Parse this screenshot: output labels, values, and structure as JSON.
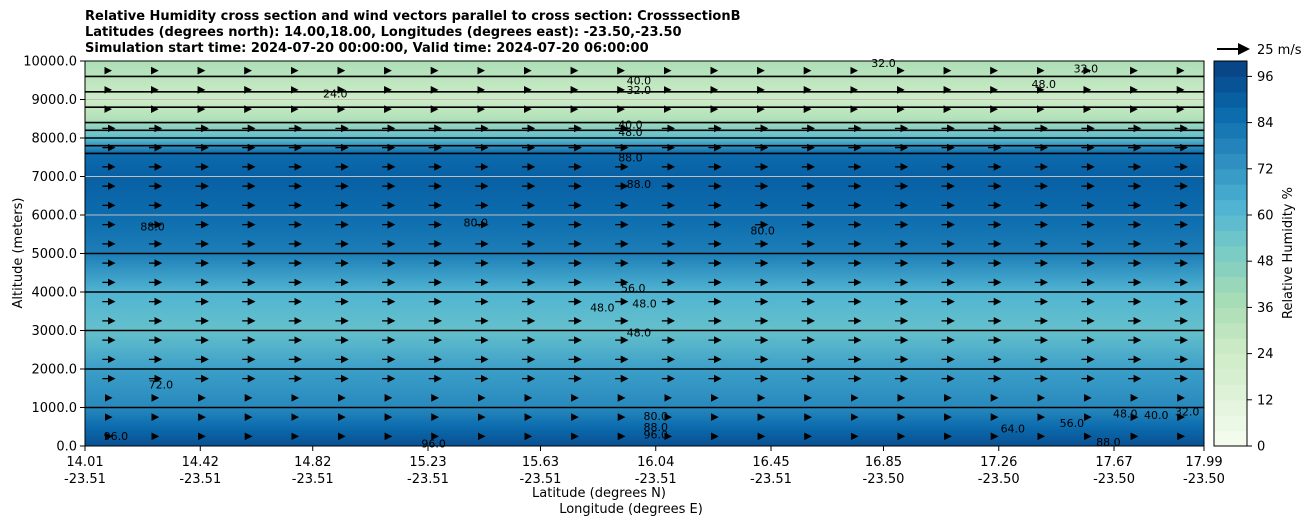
{
  "chart_data": {
    "type": "heatmap",
    "title_lines": [
      "Relative Humidity cross section and wind vectors parallel to cross section: CrosssectionB",
      "Latitudes (degrees north): 14.00,18.00, Longitudes (degrees east): -23.50,-23.50",
      "Simulation start time: 2024-07-20 00:00:00, Valid time: 2024-07-20 06:00:00"
    ],
    "xlabel": "Latitude (degrees N)",
    "xlabel2": "Longitude (degrees E)",
    "ylabel": "Altitude (meters)",
    "colorbar_label": "Relative Humidity %",
    "quiver_key": "25 m/s",
    "xlim": [
      14.01,
      17.99
    ],
    "ylim": [
      0,
      10000
    ],
    "x_ticks": [
      14.01,
      14.42,
      14.82,
      15.23,
      15.63,
      16.04,
      16.45,
      16.85,
      17.26,
      17.67,
      17.99
    ],
    "x_ticks_lat": [
      "14.01",
      "14.42",
      "14.82",
      "15.23",
      "15.63",
      "16.04",
      "16.45",
      "16.85",
      "17.26",
      "17.67",
      "17.99"
    ],
    "x_ticks_lon": [
      "-23.51",
      "-23.51",
      "-23.51",
      "-23.51",
      "-23.51",
      "-23.51",
      "-23.51",
      "-23.50",
      "-23.50",
      "-23.50",
      "-23.50"
    ],
    "y_ticks": [
      0,
      1000,
      2000,
      3000,
      4000,
      5000,
      6000,
      7000,
      8000,
      9000,
      10000
    ],
    "y_tick_labels": [
      "0.0",
      "1000.0",
      "2000.0",
      "3000.0",
      "4000.0",
      "5000.0",
      "6000.0",
      "7000.0",
      "8000.0",
      "9000.0",
      "10000.0"
    ],
    "colorbar_ticks": [
      0,
      12,
      24,
      36,
      48,
      60,
      72,
      84,
      96
    ],
    "colorbar_tick_labels": [
      "0",
      "12",
      "24",
      "36",
      "48",
      "60",
      "72",
      "84",
      "96"
    ],
    "colorbar_range": [
      0,
      100
    ],
    "colormap": "GnBu",
    "grid": "horizontal",
    "rh_profile": [
      {
        "alt": 0,
        "rh": 95
      },
      {
        "alt": 500,
        "rh": 86
      },
      {
        "alt": 1000,
        "rh": 76
      },
      {
        "alt": 2000,
        "rh": 69
      },
      {
        "alt": 3000,
        "rh": 56
      },
      {
        "alt": 4000,
        "rh": 62
      },
      {
        "alt": 5000,
        "rh": 80
      },
      {
        "alt": 6000,
        "rh": 86
      },
      {
        "alt": 7000,
        "rh": 90
      },
      {
        "alt": 7600,
        "rh": 86
      },
      {
        "alt": 8000,
        "rh": 58
      },
      {
        "alt": 8500,
        "rh": 34
      },
      {
        "alt": 9000,
        "rh": 24
      },
      {
        "alt": 10000,
        "rh": 36
      }
    ],
    "contour_labels": [
      {
        "text": "96.0",
        "x": 14.12,
        "y": 260
      },
      {
        "text": "96.0",
        "x": 15.25,
        "y": 60
      },
      {
        "text": "80.0",
        "x": 16.04,
        "y": 780
      },
      {
        "text": "88.0",
        "x": 16.04,
        "y": 500
      },
      {
        "text": "96.0",
        "x": 16.04,
        "y": 300
      },
      {
        "text": "72.0",
        "x": 14.28,
        "y": 1600
      },
      {
        "text": "48.0",
        "x": 15.85,
        "y": 3600
      },
      {
        "text": "48.0",
        "x": 16.0,
        "y": 3700
      },
      {
        "text": "48.0",
        "x": 15.98,
        "y": 2950
      },
      {
        "text": "56.0",
        "x": 15.96,
        "y": 4100
      },
      {
        "text": "80.0",
        "x": 15.4,
        "y": 5800
      },
      {
        "text": "80.0",
        "x": 16.42,
        "y": 5600
      },
      {
        "text": "88.0",
        "x": 14.25,
        "y": 5700
      },
      {
        "text": "88.0",
        "x": 15.98,
        "y": 6800
      },
      {
        "text": "88.0",
        "x": 15.95,
        "y": 7500
      },
      {
        "text": "40.0",
        "x": 15.95,
        "y": 8350
      },
      {
        "text": "48.0",
        "x": 15.95,
        "y": 8150
      },
      {
        "text": "40.0",
        "x": 15.98,
        "y": 9500
      },
      {
        "text": "32.0",
        "x": 15.98,
        "y": 9250
      },
      {
        "text": "24.0",
        "x": 14.9,
        "y": 9150
      },
      {
        "text": "32.0",
        "x": 16.85,
        "y": 9950
      },
      {
        "text": "32.0",
        "x": 17.57,
        "y": 9800
      },
      {
        "text": "48.0",
        "x": 17.42,
        "y": 9400
      },
      {
        "text": "64.0",
        "x": 17.31,
        "y": 450
      },
      {
        "text": "56.0",
        "x": 17.52,
        "y": 600
      },
      {
        "text": "48.0",
        "x": 17.71,
        "y": 850
      },
      {
        "text": "40.0",
        "x": 17.82,
        "y": 800
      },
      {
        "text": "32.0",
        "x": 17.93,
        "y": 900
      },
      {
        "text": "88.0",
        "x": 17.65,
        "y": 100
      }
    ]
  }
}
